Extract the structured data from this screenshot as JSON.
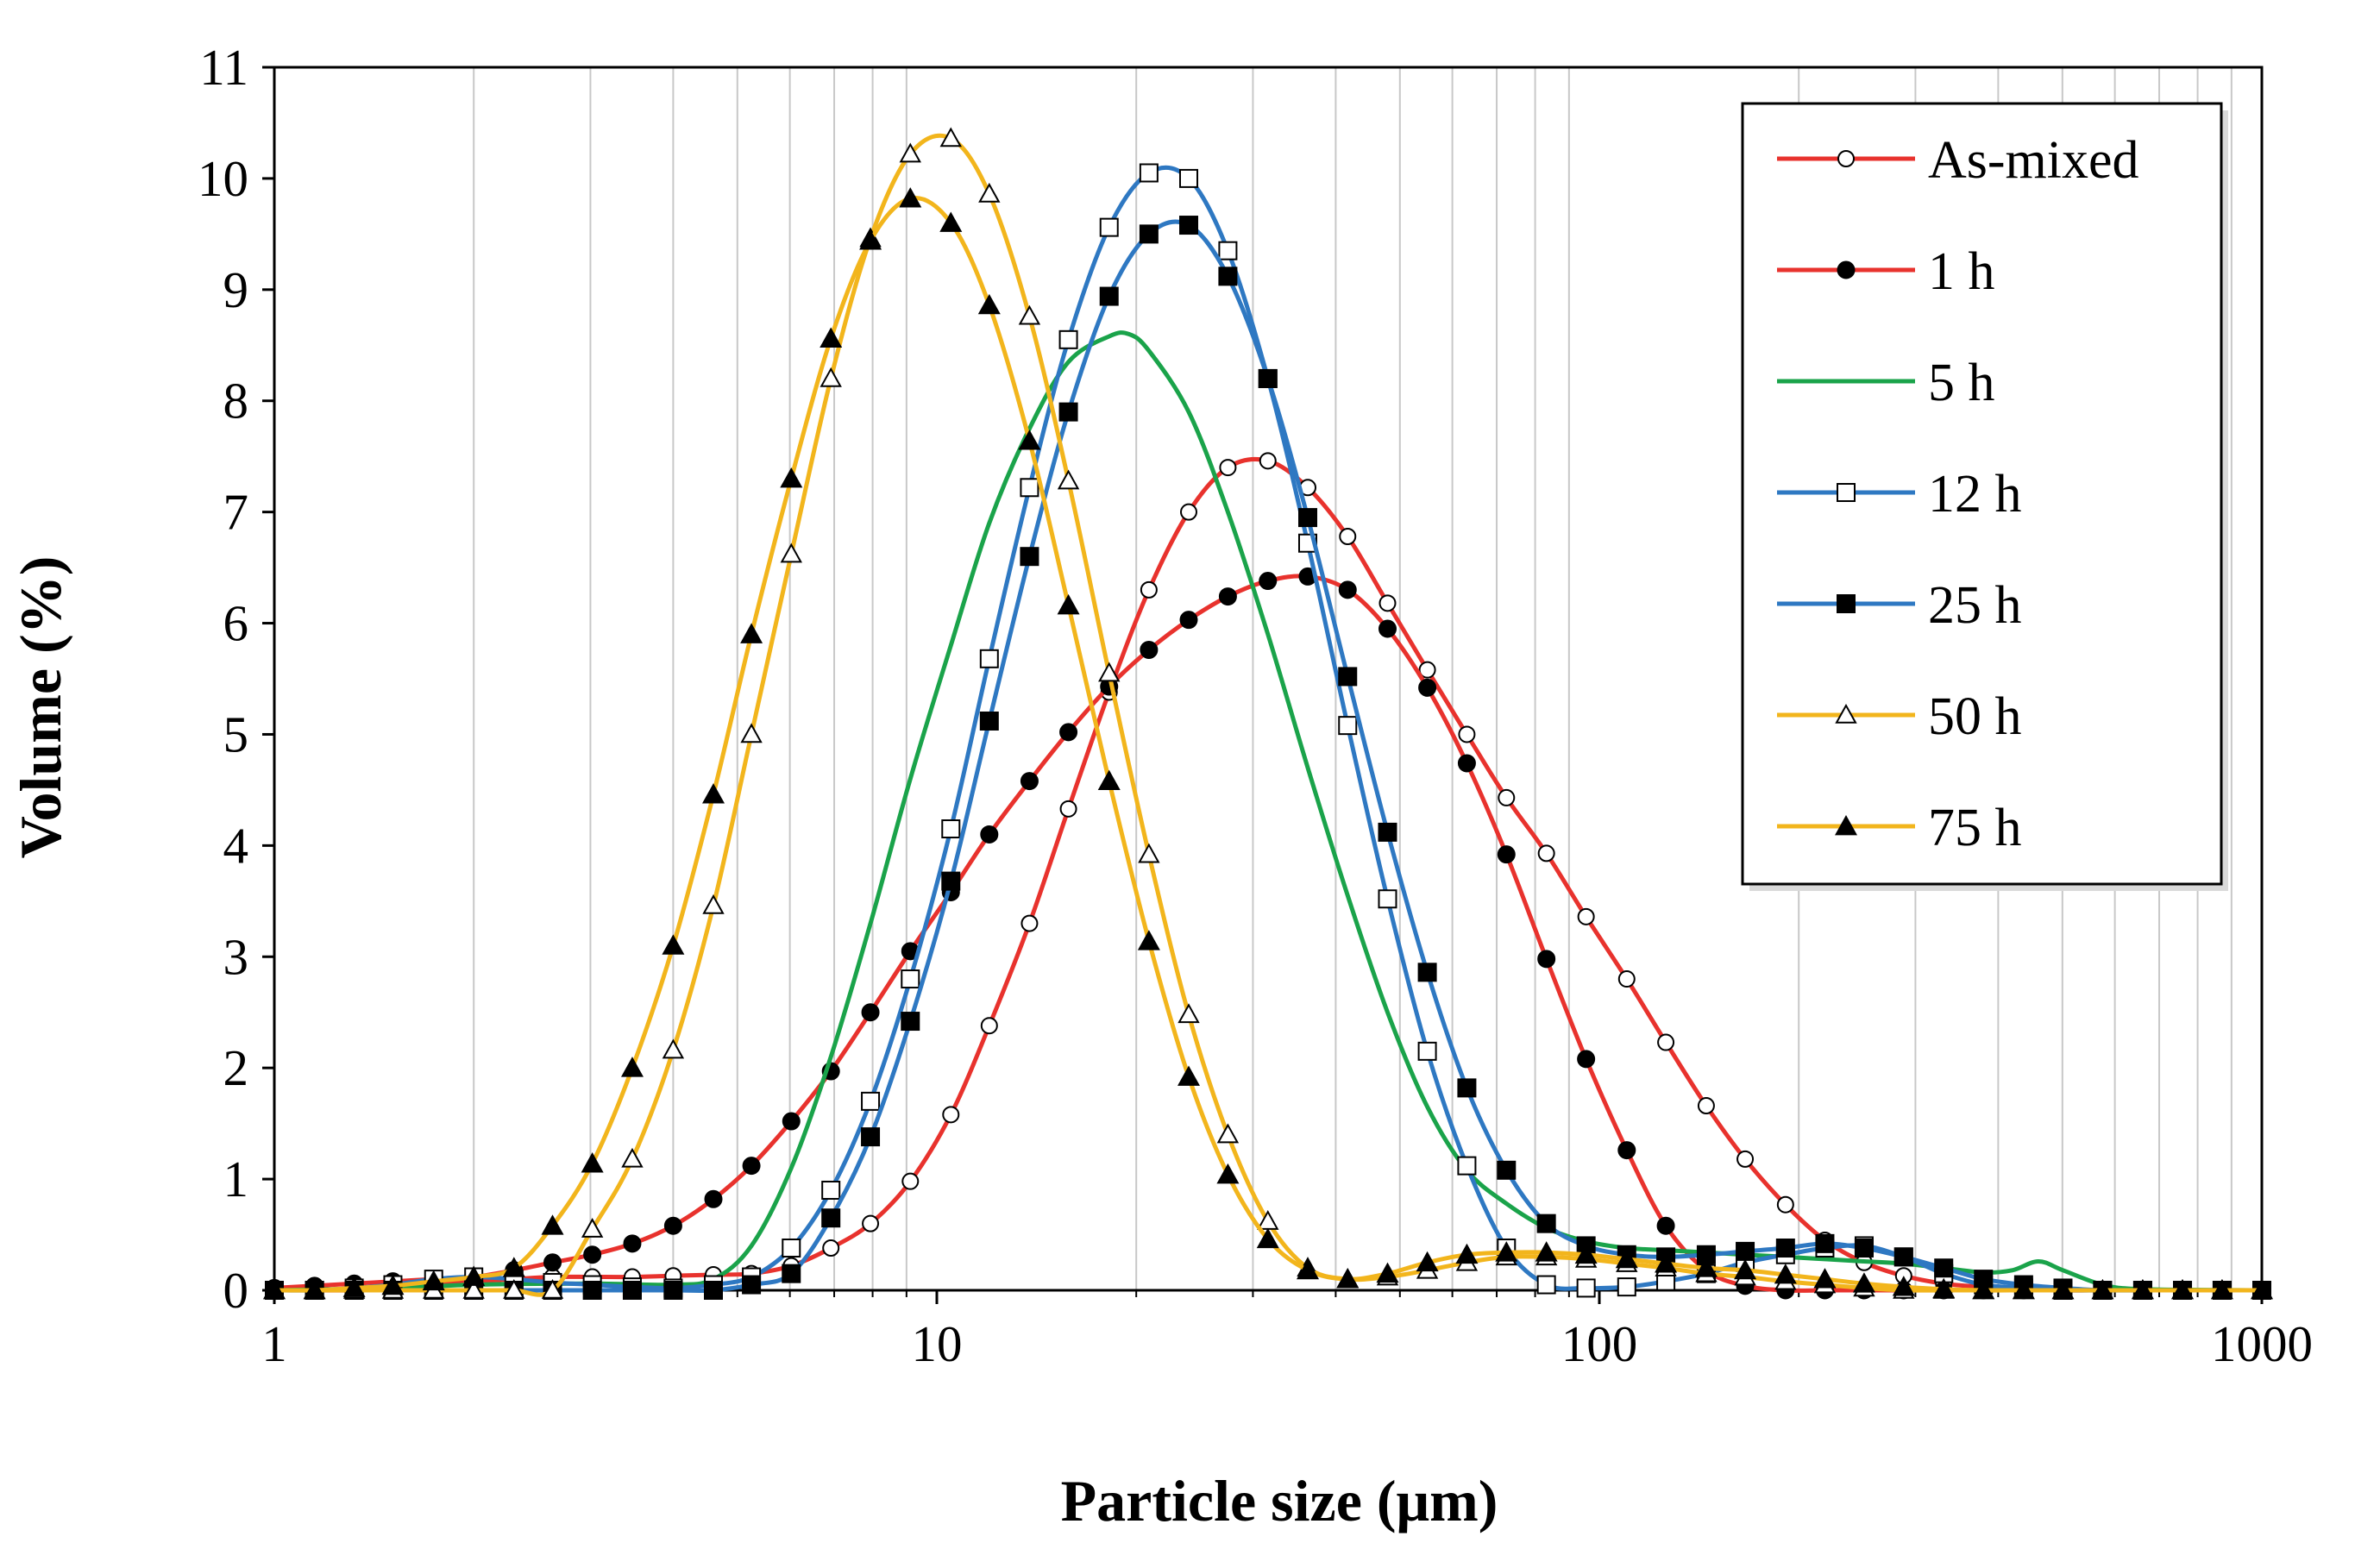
{
  "chart_data": {
    "type": "line",
    "title": "",
    "xlabel": "Particle size (μm)",
    "ylabel": "Volume (%)",
    "xscale": "log",
    "xlim": [
      1,
      1000
    ],
    "ylim": [
      0,
      11
    ],
    "x_ticks": [
      "1",
      "10",
      "100",
      "1000"
    ],
    "y_ticks": [
      "0",
      "1",
      "2",
      "3",
      "4",
      "5",
      "6",
      "7",
      "8",
      "9",
      "10",
      "11"
    ],
    "grid": "vertical minor gridlines",
    "legend_position": "top-right",
    "series": [
      {
        "name": "As-mixed",
        "color": "#e8322d",
        "marker": "open-circle",
        "x": [
          1,
          1.15,
          1.32,
          1.51,
          1.74,
          2,
          2.3,
          2.63,
          3.02,
          3.47,
          4,
          4.6,
          5.25,
          6.03,
          6.92,
          7.94,
          9.12,
          10.5,
          12,
          13.8,
          15.8,
          18.2,
          20.9,
          24,
          27.5,
          31.6,
          36.3,
          41.7,
          47.9,
          55,
          63.1,
          72.4,
          83.2,
          95.5,
          110,
          126,
          145,
          166,
          191,
          219,
          251,
          288,
          331,
          380,
          437,
          501,
          575,
          661,
          759,
          871,
          1000
        ],
        "y": [
          0,
          0,
          0,
          0.02,
          0.05,
          0.08,
          0.1,
          0.12,
          0.12,
          0.12,
          0.13,
          0.14,
          0.15,
          0.22,
          0.38,
          0.6,
          0.98,
          1.58,
          2.38,
          3.3,
          4.33,
          5.38,
          6.3,
          7.0,
          7.4,
          7.46,
          7.22,
          6.78,
          6.18,
          5.58,
          5.0,
          4.43,
          3.93,
          3.36,
          2.8,
          2.23,
          1.66,
          1.18,
          0.77,
          0.45,
          0.25,
          0.13,
          0.06,
          0.03,
          0.01,
          0,
          0,
          0,
          0,
          0,
          0
        ]
      },
      {
        "name": "1 h",
        "color": "#e8322d",
        "marker": "filled-circle",
        "x": [
          1,
          1.15,
          1.32,
          1.51,
          1.74,
          2,
          2.3,
          2.63,
          3.02,
          3.47,
          4,
          4.6,
          5.25,
          6.03,
          6.92,
          7.94,
          9.12,
          10.5,
          12,
          13.8,
          15.8,
          18.2,
          20.9,
          24,
          27.5,
          31.6,
          36.3,
          41.7,
          47.9,
          55,
          63.1,
          72.4,
          83.2,
          95.5,
          110,
          126,
          145,
          166,
          191,
          219,
          251,
          288,
          331,
          380,
          437,
          501,
          575,
          661,
          759,
          871,
          1000
        ],
        "y": [
          0.02,
          0.04,
          0.06,
          0.08,
          0.1,
          0.12,
          0.18,
          0.25,
          0.32,
          0.42,
          0.58,
          0.82,
          1.12,
          1.52,
          1.97,
          2.5,
          3.05,
          3.58,
          4.1,
          4.58,
          5.02,
          5.43,
          5.76,
          6.03,
          6.24,
          6.38,
          6.42,
          6.3,
          5.95,
          5.42,
          4.74,
          3.92,
          2.98,
          2.08,
          1.26,
          0.58,
          0.18,
          0.04,
          0,
          0,
          0,
          0,
          0,
          0,
          0,
          0,
          0,
          0,
          0,
          0,
          0
        ]
      },
      {
        "name": "5 h",
        "color": "#1aa34a",
        "marker": "none",
        "x": [
          1,
          1.5,
          2,
          3,
          4,
          4.6,
          5.25,
          6.03,
          6.92,
          7.94,
          9.12,
          10.5,
          12,
          13.8,
          15.8,
          18.2,
          19.5,
          20.9,
          24,
          27.5,
          31.6,
          36.3,
          41.7,
          47.9,
          55,
          63.1,
          72.4,
          83.2,
          95.5,
          110,
          126,
          145,
          166,
          191,
          219,
          251,
          288,
          331,
          380,
          420,
          460,
          501,
          575,
          661,
          1000
        ],
        "y": [
          0,
          0.02,
          0.05,
          0.06,
          0.05,
          0.1,
          0.4,
          1.1,
          2.1,
          3.3,
          4.6,
          5.8,
          6.9,
          7.75,
          8.35,
          8.58,
          8.6,
          8.45,
          7.9,
          7.0,
          5.9,
          4.7,
          3.55,
          2.5,
          1.65,
          1.08,
          0.78,
          0.56,
          0.44,
          0.38,
          0.36,
          0.34,
          0.32,
          0.3,
          0.28,
          0.26,
          0.24,
          0.2,
          0.16,
          0.18,
          0.26,
          0.18,
          0.05,
          0.01,
          0
        ]
      },
      {
        "name": "12 h",
        "color": "#2e78c2",
        "marker": "open-square",
        "x": [
          1,
          1.15,
          1.32,
          1.51,
          1.74,
          2,
          2.3,
          2.63,
          3.02,
          3.47,
          4,
          4.6,
          5.25,
          6.03,
          6.92,
          7.94,
          9.12,
          10.5,
          12,
          13.8,
          15.8,
          18.2,
          20.9,
          24,
          27.5,
          31.6,
          36.3,
          41.7,
          47.9,
          55,
          63.1,
          72.4,
          83.2,
          95.5,
          110,
          126,
          145,
          166,
          191,
          219,
          251,
          288,
          331,
          380,
          437,
          501,
          575,
          661,
          759,
          871,
          1000
        ],
        "y": [
          0,
          0,
          0.02,
          0.05,
          0.1,
          0.12,
          0.1,
          0.07,
          0.05,
          0.03,
          0.02,
          0.05,
          0.12,
          0.38,
          0.9,
          1.7,
          2.8,
          4.15,
          5.68,
          7.22,
          8.55,
          9.56,
          10.05,
          10.0,
          9.35,
          8.2,
          6.72,
          5.08,
          3.52,
          2.15,
          1.12,
          0.38,
          0.05,
          0.02,
          0.03,
          0.08,
          0.15,
          0.25,
          0.32,
          0.38,
          0.4,
          0.3,
          0.15,
          0.05,
          0.02,
          0,
          0,
          0,
          0,
          0,
          0
        ]
      },
      {
        "name": "25 h",
        "color": "#2e78c2",
        "marker": "filled-square",
        "x": [
          1,
          1.15,
          1.32,
          1.51,
          1.74,
          2,
          2.3,
          2.63,
          3.02,
          3.47,
          4,
          4.6,
          5.25,
          6.03,
          6.92,
          7.94,
          9.12,
          10.5,
          12,
          13.8,
          15.8,
          18.2,
          20.9,
          24,
          27.5,
          31.6,
          36.3,
          41.7,
          47.9,
          55,
          63.1,
          72.4,
          83.2,
          95.5,
          110,
          126,
          145,
          166,
          191,
          219,
          251,
          288,
          331,
          380,
          437,
          501,
          575,
          661,
          759,
          871,
          1000
        ],
        "y": [
          0,
          0,
          0,
          0,
          0,
          0,
          0,
          0,
          0,
          0,
          0,
          0,
          0.05,
          0.15,
          0.65,
          1.38,
          2.42,
          3.68,
          5.12,
          6.6,
          7.9,
          8.94,
          9.5,
          9.58,
          9.12,
          8.2,
          6.95,
          5.52,
          4.12,
          2.86,
          1.82,
          1.08,
          0.6,
          0.4,
          0.32,
          0.3,
          0.32,
          0.35,
          0.38,
          0.42,
          0.38,
          0.3,
          0.2,
          0.1,
          0.05,
          0.02,
          0,
          0,
          0,
          0,
          0
        ]
      },
      {
        "name": "50 h",
        "color": "#f2b51c",
        "marker": "open-triangle",
        "x": [
          1,
          1.15,
          1.32,
          1.51,
          1.74,
          2,
          2.3,
          2.63,
          3.02,
          3.47,
          4,
          4.6,
          5.25,
          6.03,
          6.92,
          7.94,
          9.12,
          10.5,
          12,
          13.8,
          15.8,
          18.2,
          20.9,
          24,
          27.5,
          31.6,
          36.3,
          41.7,
          47.9,
          55,
          63.1,
          72.4,
          83.2,
          95.5,
          110,
          126,
          145,
          166,
          191,
          219,
          251,
          288,
          331,
          380,
          437,
          501,
          575,
          661,
          759,
          871,
          1000
        ],
        "y": [
          0,
          0,
          0,
          0,
          0,
          0,
          0,
          0,
          0.55,
          1.18,
          2.16,
          3.46,
          5.0,
          6.62,
          8.2,
          9.46,
          10.22,
          10.36,
          9.86,
          8.76,
          7.28,
          5.55,
          3.92,
          2.48,
          1.4,
          0.62,
          0.2,
          0.1,
          0.12,
          0.18,
          0.25,
          0.3,
          0.3,
          0.28,
          0.24,
          0.2,
          0.15,
          0.12,
          0.08,
          0.05,
          0.02,
          0,
          0,
          0,
          0,
          0,
          0,
          0,
          0,
          0,
          0
        ]
      },
      {
        "name": "75 h",
        "color": "#f2b51c",
        "marker": "filled-triangle",
        "x": [
          1,
          1.15,
          1.32,
          1.51,
          1.74,
          2,
          2.3,
          2.63,
          3.02,
          3.47,
          4,
          4.6,
          5.25,
          6.03,
          6.92,
          7.94,
          9.12,
          10.5,
          12,
          13.8,
          15.8,
          18.2,
          20.9,
          24,
          27.5,
          31.6,
          36.3,
          41.7,
          47.9,
          55,
          63.1,
          72.4,
          83.2,
          95.5,
          110,
          126,
          145,
          166,
          191,
          219,
          251,
          288,
          331,
          380,
          437,
          501,
          575,
          661,
          759,
          871,
          1000
        ],
        "y": [
          0,
          0,
          0.02,
          0.04,
          0.08,
          0.12,
          0.2,
          0.58,
          1.14,
          2.0,
          3.1,
          4.46,
          5.9,
          7.3,
          8.56,
          9.44,
          9.82,
          9.6,
          8.86,
          7.64,
          6.16,
          4.58,
          3.14,
          1.92,
          1.04,
          0.46,
          0.18,
          0.1,
          0.15,
          0.25,
          0.32,
          0.34,
          0.34,
          0.32,
          0.28,
          0.24,
          0.2,
          0.18,
          0.14,
          0.1,
          0.06,
          0.03,
          0.01,
          0,
          0,
          0,
          0,
          0,
          0,
          0,
          0
        ]
      }
    ]
  }
}
